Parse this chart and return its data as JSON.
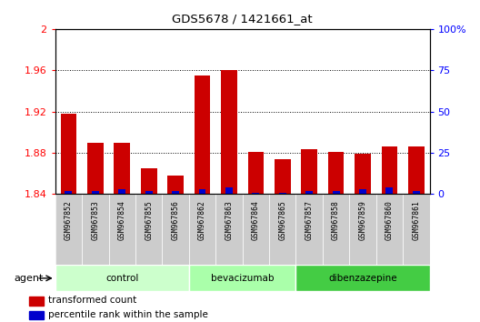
{
  "title": "GDS5678 / 1421661_at",
  "samples": [
    "GSM967852",
    "GSM967853",
    "GSM967854",
    "GSM967855",
    "GSM967856",
    "GSM967862",
    "GSM967863",
    "GSM967864",
    "GSM967865",
    "GSM967857",
    "GSM967858",
    "GSM967859",
    "GSM967860",
    "GSM967861"
  ],
  "transformed_count": [
    1.918,
    1.89,
    1.89,
    1.865,
    1.858,
    1.955,
    1.96,
    1.881,
    1.874,
    1.884,
    1.881,
    1.879,
    1.886,
    1.886
  ],
  "percentile_rank": [
    2,
    2,
    3,
    2,
    2,
    3,
    4,
    1,
    1,
    2,
    2,
    3,
    4,
    2
  ],
  "groups": [
    {
      "name": "control",
      "start": 0,
      "end": 5,
      "color": "#ccffcc"
    },
    {
      "name": "bevacizumab",
      "start": 5,
      "end": 9,
      "color": "#aaffaa"
    },
    {
      "name": "dibenzazepine",
      "start": 9,
      "end": 14,
      "color": "#44cc44"
    }
  ],
  "ylim_left": [
    1.84,
    2.0
  ],
  "ylim_right": [
    0,
    100
  ],
  "yticks_left": [
    1.84,
    1.88,
    1.92,
    1.96,
    2.0
  ],
  "yticks_right": [
    0,
    25,
    50,
    75,
    100
  ],
  "ytick_labels_left": [
    "1.84",
    "1.88",
    "1.92",
    "1.96",
    "2"
  ],
  "ytick_labels_right": [
    "0",
    "25",
    "50",
    "75",
    "100%"
  ],
  "bar_color_red": "#cc0000",
  "bar_color_blue": "#0000cc",
  "bg_color": "#ffffff",
  "xtick_bg": "#cccccc",
  "legend_red": "transformed count",
  "legend_blue": "percentile rank within the sample",
  "agent_label": "agent",
  "bar_width": 0.6
}
